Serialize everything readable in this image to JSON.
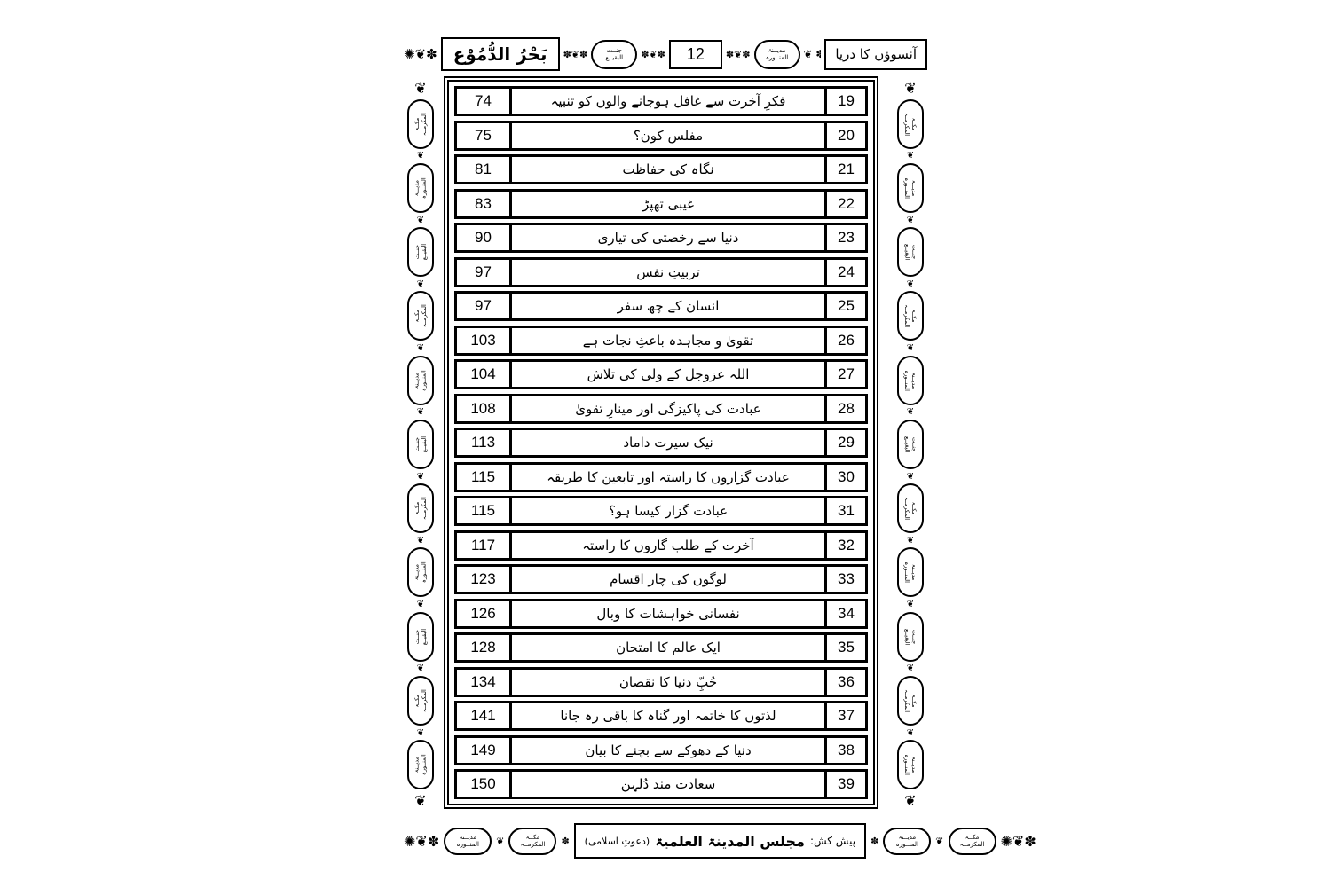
{
  "page": {
    "background": "#ffffff",
    "ink": "#000000"
  },
  "header": {
    "book_title": "بَحْرُ الدُّمُوْع",
    "series_title": "آنسوؤں کا دریا",
    "page_number": "12",
    "oval_jannat": {
      "line1": "جنــت",
      "line2": "البقیــع"
    },
    "oval_madina": {
      "line1": "مدیــنۃ",
      "line2": "المنــورہ"
    }
  },
  "toc": {
    "rows": [
      {
        "serial": "19",
        "title": "فکرِ آخرت سے غافل ہوجانے والوں کو تنبیہ",
        "page": "74"
      },
      {
        "serial": "20",
        "title": "مفلس کون؟",
        "page": "75"
      },
      {
        "serial": "21",
        "title": "نگاہ کی حفاظت",
        "page": "81"
      },
      {
        "serial": "22",
        "title": "غیبی تھپڑ",
        "page": "83"
      },
      {
        "serial": "23",
        "title": "دنیا سے رخصتی کی تیاری",
        "page": "90"
      },
      {
        "serial": "24",
        "title": "تربیتِ نفس",
        "page": "97"
      },
      {
        "serial": "25",
        "title": "انسان کے چھ سفر",
        "page": "97"
      },
      {
        "serial": "26",
        "title": "تقویٰ و مجاہدہ باعثِ نجات ہے",
        "page": "103"
      },
      {
        "serial": "27",
        "title": "اللہ عزوجل کے ولی کی تلاش",
        "page": "104"
      },
      {
        "serial": "28",
        "title": "عبادت کی پاکیزگی اور مینارِ تقویٰ",
        "page": "108"
      },
      {
        "serial": "29",
        "title": "نیک سیرت داماد",
        "page": "113"
      },
      {
        "serial": "30",
        "title": "عبادت گزاروں کا راستہ اور تابعین کا طریقہ",
        "page": "115"
      },
      {
        "serial": "31",
        "title": "عبادت گزار کیسا ہو؟",
        "page": "115"
      },
      {
        "serial": "32",
        "title": "آخرت کے طلب گاروں کا راستہ",
        "page": "117"
      },
      {
        "serial": "33",
        "title": "لوگوں کی چار اقسام",
        "page": "123"
      },
      {
        "serial": "34",
        "title": "نفسانی خواہشات کا وبال",
        "page": "126"
      },
      {
        "serial": "35",
        "title": "ایک عالم کا امتحان",
        "page": "128"
      },
      {
        "serial": "36",
        "title": "حُبِّ دنیا کا نقصان",
        "page": "134"
      },
      {
        "serial": "37",
        "title": "لذتوں کا خاتمہ اور گناہ کا باقی رہ جانا",
        "page": "141"
      },
      {
        "serial": "38",
        "title": "دنیا کے دھوکے سے بچنے کا بیان",
        "page": "149"
      },
      {
        "serial": "39",
        "title": "سعادت مند دُلہن",
        "page": "150"
      }
    ]
  },
  "footer": {
    "presenter_label": "پیش کش:",
    "publisher": "مجلس المدینۃ العلمیۃ",
    "publisher_note": "(دعوتِ اسلامی)",
    "ovals": [
      {
        "line1": "مدیــنۃ",
        "line2": "المنــورہ"
      },
      {
        "line1": "مکــۃ",
        "line2": "المکرمــہ"
      },
      {
        "line1": "مدیــنۃ",
        "line2": "المنــورہ"
      },
      {
        "line1": "مکــۃ",
        "line2": "المکرمــہ"
      }
    ]
  },
  "ornaments": {
    "floral_small": "✽",
    "floral_heart": "❦",
    "floral_pair": "✽❦✽",
    "garland": "❦ ✽ ❦ ✽ ❦ ✽ ❦",
    "corner_cluster": "✺❦✽",
    "side_oval_cycle": [
      {
        "line1": "مکــۃ",
        "line2": "المکرمــہ"
      },
      {
        "line1": "مدیــنۃ",
        "line2": "المنــورہ"
      },
      {
        "line1": "جنــت",
        "line2": "البقیــع"
      }
    ],
    "side_oval_count": 11
  }
}
